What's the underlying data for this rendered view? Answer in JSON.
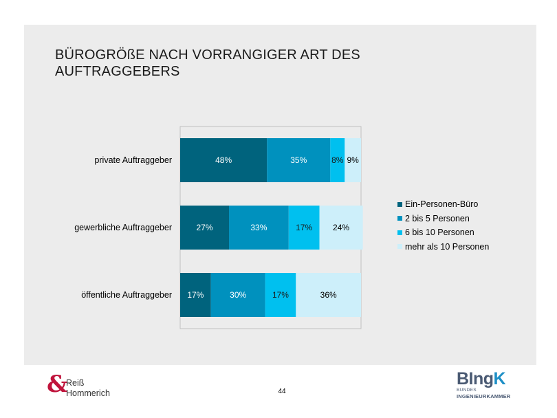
{
  "slide": {
    "title": "BÜROGRÖßE NACH VORRANGIGER ART DES AUFTRAGGEBERS",
    "page_number": "44"
  },
  "colors": {
    "slide_bg": "#ececec",
    "series": [
      "#00637d",
      "#0091be",
      "#00c0ef",
      "#cdeffa"
    ]
  },
  "chart_data": {
    "type": "bar",
    "orientation": "horizontal",
    "stacked": true,
    "title": "",
    "xlabel": "",
    "ylabel": "",
    "xlim": [
      0,
      100
    ],
    "categories": [
      "private Auftraggeber",
      "gewerbliche Auftraggeber",
      "öffentliche Auftraggeber"
    ],
    "series": [
      {
        "name": "Ein-Personen-Büro",
        "values": [
          48,
          27,
          17
        ],
        "labels": [
          "48%",
          "27%",
          "17%"
        ]
      },
      {
        "name": "2 bis 5 Personen",
        "values": [
          35,
          33,
          30
        ],
        "labels": [
          "35%",
          "33%",
          "30%"
        ]
      },
      {
        "name": "6 bis 10 Personen",
        "values": [
          8,
          17,
          17
        ],
        "labels": [
          "8%",
          "17%",
          "17%"
        ]
      },
      {
        "name": "mehr als 10 Personen",
        "values": [
          9,
          24,
          36
        ],
        "labels": [
          "9%",
          "24%",
          "36%"
        ]
      }
    ],
    "legend_position": "right"
  },
  "footer": {
    "left_logo": {
      "symbol": "&",
      "line1": "Reiß",
      "line2": "Hommerich"
    },
    "right_logo": {
      "main_b": "BIng",
      "main_k": "K",
      "sub1": "BUNDES",
      "sub2": "INGENIEURKAMMER"
    }
  }
}
